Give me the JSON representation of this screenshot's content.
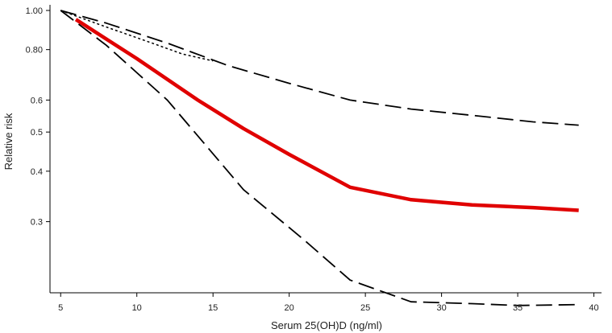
{
  "chart_data": {
    "type": "line",
    "xlabel": "Serum 25(OH)D (ng/ml)",
    "ylabel": "Relative risk",
    "xlim": [
      4.3,
      40.5
    ],
    "ylim": [
      0.2,
      1.0
    ],
    "yscale": "log",
    "x_ticks": [
      5,
      10,
      15,
      20,
      25,
      30,
      35,
      40
    ],
    "x_tick_labels": [
      "5",
      "10",
      "15",
      "20",
      "25",
      "30",
      "35",
      "40"
    ],
    "y_ticks": [
      1.0,
      0.8,
      0.6,
      0.5,
      0.4,
      0.3
    ],
    "y_tick_labels": [
      "1.00",
      "0.80",
      "0.6",
      "0.5",
      "0.4",
      "0.3"
    ],
    "grid": false,
    "series": [
      {
        "role": "estimate",
        "style": "solid",
        "color": "#e00000",
        "x": [
          6,
          10,
          14,
          17,
          20,
          24,
          28,
          32,
          36,
          39
        ],
        "y": [
          0.95,
          0.76,
          0.6,
          0.51,
          0.44,
          0.365,
          0.34,
          0.33,
          0.325,
          0.32
        ]
      },
      {
        "role": "upper_ci",
        "style": "dashed",
        "color": "#000000",
        "x": [
          5,
          8,
          12,
          16,
          20,
          24,
          28,
          32,
          36,
          39
        ],
        "y": [
          1.0,
          0.93,
          0.83,
          0.73,
          0.66,
          0.6,
          0.57,
          0.55,
          0.53,
          0.52
        ]
      },
      {
        "role": "lower_ci",
        "style": "dashed",
        "color": "#000000",
        "x": [
          5,
          8,
          12,
          17,
          21,
          24,
          28,
          32,
          35,
          39
        ],
        "y": [
          1.0,
          0.82,
          0.6,
          0.36,
          0.27,
          0.215,
          0.19,
          0.188,
          0.186,
          0.187
        ]
      },
      {
        "role": "reference",
        "style": "dotted",
        "color": "#000000",
        "x": [
          5,
          8,
          11,
          13,
          15
        ],
        "y": [
          1.0,
          0.91,
          0.83,
          0.78,
          0.75
        ]
      }
    ]
  }
}
